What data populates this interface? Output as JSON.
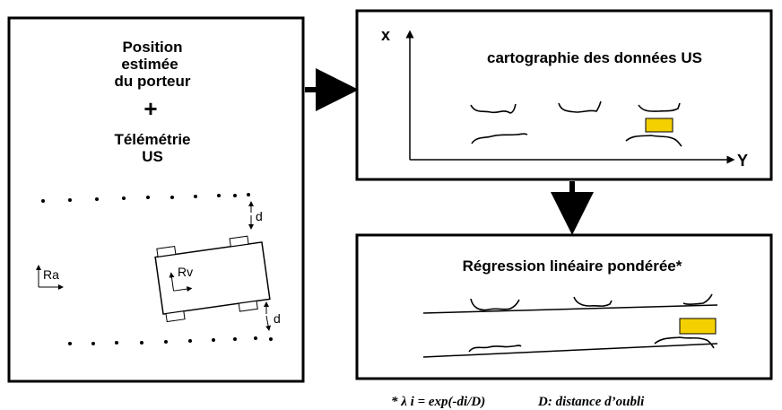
{
  "left_box": {
    "lines": [
      "Position",
      "estimée",
      "du porteur",
      "+",
      "Télémétrie",
      "US"
    ],
    "distance_top": "d",
    "distance_bottom": "d",
    "frame_world": "Ra",
    "frame_vehicle": "Rv"
  },
  "map_box": {
    "axis_x": "x",
    "title": "cartographie des données US",
    "axis_y": "Y"
  },
  "regression_box": {
    "title": "Régression linéaire pondérée*"
  },
  "footnote": {
    "formula": "* λ i = exp(-di/D)",
    "definition": "D: distance d’oubli"
  }
}
